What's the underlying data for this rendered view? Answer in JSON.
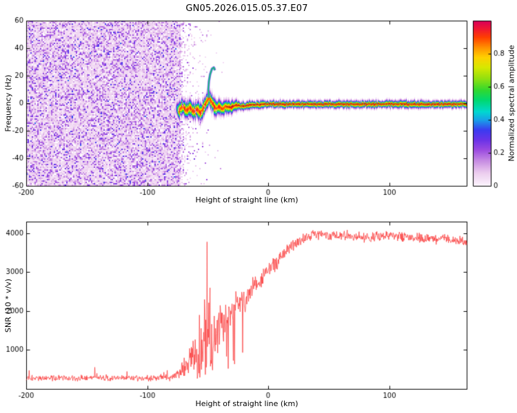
{
  "title": "GN05.2026.015.05.37.E07",
  "chart_data": [
    {
      "type": "heatmap",
      "title": "GN05.2026.015.05.37.E07",
      "xlabel": "Height of straight line (km)",
      "ylabel": "Frequency (Hz)",
      "xlim": [
        -200,
        164
      ],
      "ylim": [
        -60,
        60
      ],
      "xticks": [
        -200,
        -100,
        0,
        100
      ],
      "yticks": [
        -60,
        -40,
        -20,
        0,
        20,
        40,
        60
      ],
      "grid": false,
      "colorbar": {
        "label": "Normalized spectral amplitude",
        "ticks": [
          0,
          0.2,
          0.4,
          0.6,
          0.8
        ],
        "tick_labels": [
          "0",
          "0.2",
          "0.4",
          "0.6",
          "0.8"
        ],
        "range": [
          0,
          1
        ],
        "colormap": [
          [
            0,
            "#fdf6fd"
          ],
          [
            0.08,
            "#eccdef"
          ],
          [
            0.15,
            "#c98fe3"
          ],
          [
            0.22,
            "#9b4ae0"
          ],
          [
            0.28,
            "#6a33e8"
          ],
          [
            0.34,
            "#3b3bf0"
          ],
          [
            0.4,
            "#18a0e8"
          ],
          [
            0.45,
            "#00d8d0"
          ],
          [
            0.52,
            "#00d870"
          ],
          [
            0.58,
            "#30d830"
          ],
          [
            0.65,
            "#90e010"
          ],
          [
            0.72,
            "#d8e800"
          ],
          [
            0.78,
            "#ffd000"
          ],
          [
            0.84,
            "#ff9000"
          ],
          [
            0.9,
            "#ff4000"
          ],
          [
            0.95,
            "#f01830"
          ],
          [
            1,
            "#d8005a"
          ]
        ]
      },
      "noise_region": {
        "x_start": -200,
        "x_end": -73,
        "amplitude_range": [
          0.02,
          0.4
        ],
        "description": "broadband purple speckle noise, no coherent signal"
      },
      "signal": {
        "x_start": -77,
        "x_end": 164,
        "peak_amplitude": 0.97,
        "trace": [
          [
            -77,
            -3
          ],
          [
            -74,
            -5
          ],
          [
            -71,
            -2
          ],
          [
            -68,
            -5
          ],
          [
            -65,
            -3
          ],
          [
            -62,
            -6
          ],
          [
            -59,
            -4
          ],
          [
            -56,
            -7
          ],
          [
            -53,
            -2
          ],
          [
            -51,
            2
          ],
          [
            -49,
            4
          ],
          [
            -47,
            1
          ],
          [
            -45,
            -2
          ],
          [
            -43,
            -4
          ],
          [
            -41,
            -2
          ],
          [
            -38,
            -4
          ],
          [
            -35,
            -2
          ],
          [
            -32,
            -3
          ],
          [
            -29,
            -2
          ],
          [
            -26,
            -1
          ],
          [
            -23,
            -2
          ],
          [
            -20,
            -2
          ],
          [
            -16,
            -1
          ],
          [
            -12,
            -1
          ],
          [
            -8,
            -1
          ],
          [
            -4,
            -0.5
          ],
          [
            0,
            -0.5
          ],
          [
            164,
            -0.5
          ]
        ],
        "spur": [
          [
            -49,
            4
          ],
          [
            -49.5,
            10
          ],
          [
            -49,
            16
          ],
          [
            -48,
            21
          ],
          [
            -46.5,
            25
          ],
          [
            -45,
            26
          ],
          [
            -44,
            24
          ]
        ],
        "halfwidth_hz": [
          [
            -77,
            3.5
          ],
          [
            -60,
            3.2
          ],
          [
            -50,
            3.5
          ],
          [
            -40,
            2.6
          ],
          [
            -30,
            2.2
          ],
          [
            -20,
            1.6
          ],
          [
            0,
            1.4
          ],
          [
            164,
            1.4
          ]
        ]
      }
    },
    {
      "type": "line",
      "xlabel": "Height of straight line (km)",
      "ylabel": "SNR (10 * v/v)",
      "xlim": [
        -200,
        164
      ],
      "ylim": [
        0,
        4300
      ],
      "xticks": [
        -200,
        -100,
        0,
        100
      ],
      "yticks": [
        1000,
        2000,
        3000,
        4000
      ],
      "grid": false,
      "series": [
        {
          "name": "SNR",
          "color": "#fa3232",
          "envelope": [
            [
              -200,
              280,
              95
            ],
            [
              -150,
              280,
              95
            ],
            [
              -100,
              285,
              95
            ],
            [
              -80,
              300,
              110
            ],
            [
              -75,
              360,
              180
            ],
            [
              -70,
              520,
              320
            ],
            [
              -65,
              700,
              460
            ],
            [
              -60,
              900,
              620
            ],
            [
              -55,
              1000,
              820
            ],
            [
              -50,
              1250,
              1000
            ],
            [
              -45,
              1300,
              950
            ],
            [
              -40,
              1600,
              820
            ],
            [
              -35,
              1800,
              700
            ],
            [
              -30,
              1950,
              620
            ],
            [
              -25,
              2100,
              520
            ],
            [
              -20,
              2300,
              470
            ],
            [
              -15,
              2500,
              420
            ],
            [
              -10,
              2700,
              370
            ],
            [
              -5,
              2880,
              320
            ],
            [
              0,
              3020,
              290
            ],
            [
              5,
              3200,
              270
            ],
            [
              10,
              3400,
              250
            ],
            [
              15,
              3550,
              230
            ],
            [
              20,
              3700,
              210
            ],
            [
              25,
              3820,
              190
            ],
            [
              30,
              3900,
              175
            ],
            [
              40,
              3960,
              160
            ],
            [
              60,
              3950,
              155
            ],
            [
              80,
              3900,
              155
            ],
            [
              100,
              3950,
              150
            ],
            [
              120,
              3900,
              150
            ],
            [
              140,
              3860,
              155
            ],
            [
              150,
              3820,
              160
            ],
            [
              164,
              3760,
              160
            ]
          ],
          "spikes": [
            [
              -57,
              1900
            ],
            [
              -52.6,
              2300
            ],
            [
              -50.4,
              3780
            ],
            [
              -48.2,
              2600
            ]
          ]
        }
      ]
    }
  ]
}
